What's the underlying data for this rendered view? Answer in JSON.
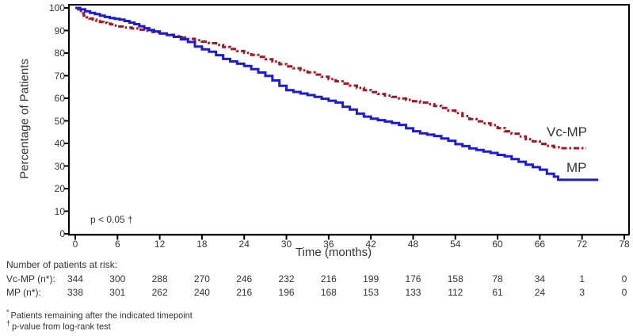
{
  "figure": {
    "background": "#ffffff",
    "axis_color": "#000000",
    "text_color": "#333333"
  },
  "chart_data": {
    "type": "line",
    "subtype": "kaplan-meier-step",
    "title": "",
    "xlabel": "Time (months)",
    "ylabel": "Percentage of Patients",
    "xlim": [
      0,
      78
    ],
    "ylim": [
      0,
      100
    ],
    "x_ticks": [
      0,
      6,
      12,
      18,
      24,
      30,
      36,
      42,
      48,
      54,
      60,
      66,
      72,
      78
    ],
    "y_ticks": [
      0,
      10,
      20,
      30,
      40,
      50,
      60,
      70,
      80,
      90,
      100
    ],
    "grid": false,
    "legend_position": "end-of-line-labels",
    "annotation": "p < 0.05 †",
    "series": [
      {
        "name": "Vc-MP",
        "color": "#aa1420",
        "line_style": "dash-dot",
        "points": [
          [
            0,
            100
          ],
          [
            0.4,
            98.8
          ],
          [
            0.8,
            97.6
          ],
          [
            1.2,
            96.6
          ],
          [
            1.6,
            95.9
          ],
          [
            2,
            95.3
          ],
          [
            2.5,
            94.8
          ],
          [
            3,
            94.3
          ],
          [
            3.5,
            93.8
          ],
          [
            4,
            93.4
          ],
          [
            4.5,
            93.1
          ],
          [
            5,
            92.7
          ],
          [
            5.5,
            92.2
          ],
          [
            6,
            91.8
          ],
          [
            7,
            91.3
          ],
          [
            8,
            90.9
          ],
          [
            9,
            90.4
          ],
          [
            10,
            89.9
          ],
          [
            11,
            89.3
          ],
          [
            12,
            88.7
          ],
          [
            13,
            88.1
          ],
          [
            14,
            87.5
          ],
          [
            15,
            86.9
          ],
          [
            16,
            86.3
          ],
          [
            17,
            85.7
          ],
          [
            18,
            85.1
          ],
          [
            19,
            84.4
          ],
          [
            20,
            83.6
          ],
          [
            21,
            82.7
          ],
          [
            22,
            81.8
          ],
          [
            23,
            80.9
          ],
          [
            24,
            80.1
          ],
          [
            25,
            79.2
          ],
          [
            26,
            78.3
          ],
          [
            27,
            77.3
          ],
          [
            28,
            76.2
          ],
          [
            29,
            75.1
          ],
          [
            30,
            74.1
          ],
          [
            31,
            73.3
          ],
          [
            32,
            72.4
          ],
          [
            33,
            71.5
          ],
          [
            34,
            70.5
          ],
          [
            35,
            69.5
          ],
          [
            36,
            68.5
          ],
          [
            37,
            67.5
          ],
          [
            38,
            66.5
          ],
          [
            39,
            65.6
          ],
          [
            40,
            64.6
          ],
          [
            41,
            63.6
          ],
          [
            42,
            62.7
          ],
          [
            43,
            61.9
          ],
          [
            44,
            61.2
          ],
          [
            45,
            60.6
          ],
          [
            46,
            59.9
          ],
          [
            47,
            59.3
          ],
          [
            48,
            58.7
          ],
          [
            49,
            58.1
          ],
          [
            50,
            57.4
          ],
          [
            51,
            56.6
          ],
          [
            52,
            55.7
          ],
          [
            53,
            54.6
          ],
          [
            54,
            53.4
          ],
          [
            55,
            52.1
          ],
          [
            56,
            50.8
          ],
          [
            57,
            49.8
          ],
          [
            58,
            48.9
          ],
          [
            59,
            48.1
          ],
          [
            60,
            46.8
          ],
          [
            61,
            45.4
          ],
          [
            62,
            44.3
          ],
          [
            63,
            43.1
          ],
          [
            64,
            41.9
          ],
          [
            65,
            40.9
          ],
          [
            66,
            39.8
          ],
          [
            67,
            38.9
          ],
          [
            68,
            38.3
          ],
          [
            69,
            37.9
          ],
          [
            72.6,
            37.9
          ]
        ]
      },
      {
        "name": "MP",
        "color": "#1c1cd8",
        "line_style": "solid",
        "points": [
          [
            0,
            100
          ],
          [
            0.7,
            99.4
          ],
          [
            1.4,
            98.5
          ],
          [
            2.1,
            97.8
          ],
          [
            2.8,
            97.3
          ],
          [
            3.5,
            96.6
          ],
          [
            4.2,
            96
          ],
          [
            4.9,
            95.5
          ],
          [
            5.6,
            95.2
          ],
          [
            6.3,
            94.8
          ],
          [
            7,
            94.2
          ],
          [
            7.7,
            93.5
          ],
          [
            8.4,
            92.8
          ],
          [
            9.1,
            91.9
          ],
          [
            9.8,
            91
          ],
          [
            10.5,
            90.2
          ],
          [
            11.2,
            89.6
          ],
          [
            12,
            88.7
          ],
          [
            13,
            88
          ],
          [
            14,
            87.2
          ],
          [
            15,
            86.1
          ],
          [
            16,
            84.9
          ],
          [
            17,
            82.9
          ],
          [
            18,
            81.7
          ],
          [
            19,
            80.6
          ],
          [
            20,
            79.1
          ],
          [
            21,
            77.4
          ],
          [
            22,
            76.3
          ],
          [
            23,
            75.3
          ],
          [
            24,
            74.3
          ],
          [
            25,
            72.9
          ],
          [
            26,
            71.4
          ],
          [
            27,
            69.9
          ],
          [
            28,
            67.9
          ],
          [
            29,
            65.5
          ],
          [
            30,
            63.6
          ],
          [
            31,
            62.8
          ],
          [
            32,
            62.1
          ],
          [
            33,
            61.4
          ],
          [
            34,
            60.6
          ],
          [
            35,
            59.8
          ],
          [
            36,
            58.9
          ],
          [
            37,
            58.1
          ],
          [
            38,
            56.2
          ],
          [
            39,
            55
          ],
          [
            40,
            53.2
          ],
          [
            41,
            51.9
          ],
          [
            42,
            51
          ],
          [
            43,
            50.3
          ],
          [
            44,
            49.7
          ],
          [
            45,
            49
          ],
          [
            46,
            48.2
          ],
          [
            47,
            46.7
          ],
          [
            48,
            45.4
          ],
          [
            49,
            44.5
          ],
          [
            50,
            43.9
          ],
          [
            51,
            43.3
          ],
          [
            52,
            42.2
          ],
          [
            53,
            41.2
          ],
          [
            54,
            39.7
          ],
          [
            55,
            38.8
          ],
          [
            56,
            37.8
          ],
          [
            57,
            37.1
          ],
          [
            58,
            36.4
          ],
          [
            59,
            35.8
          ],
          [
            60,
            34.9
          ],
          [
            61,
            34.3
          ],
          [
            62,
            33.1
          ],
          [
            63,
            31.9
          ],
          [
            64,
            30.6
          ],
          [
            65,
            29.5
          ],
          [
            66,
            28.4
          ],
          [
            67,
            26.6
          ],
          [
            68,
            25.3
          ],
          [
            68.6,
            23.9
          ],
          [
            74.3,
            23.9
          ]
        ]
      }
    ]
  },
  "risk_table": {
    "title": "Number of patients at risk:",
    "timepoints": [
      0,
      6,
      12,
      18,
      24,
      30,
      36,
      42,
      48,
      54,
      60,
      66,
      72,
      78
    ],
    "rows": [
      {
        "label": "Vc-MP (n*):",
        "values": [
          344,
          300,
          288,
          270,
          246,
          232,
          216,
          199,
          176,
          158,
          78,
          34,
          1,
          0
        ]
      },
      {
        "label": "MP (n*):",
        "values": [
          338,
          301,
          262,
          240,
          216,
          196,
          168,
          153,
          133,
          112,
          61,
          24,
          3,
          0
        ]
      }
    ]
  },
  "footnotes": [
    {
      "marker": "*",
      "text": "Patients remaining after the indicated timepoint"
    },
    {
      "marker": "†",
      "text": "p-value from log-rank test"
    }
  ]
}
